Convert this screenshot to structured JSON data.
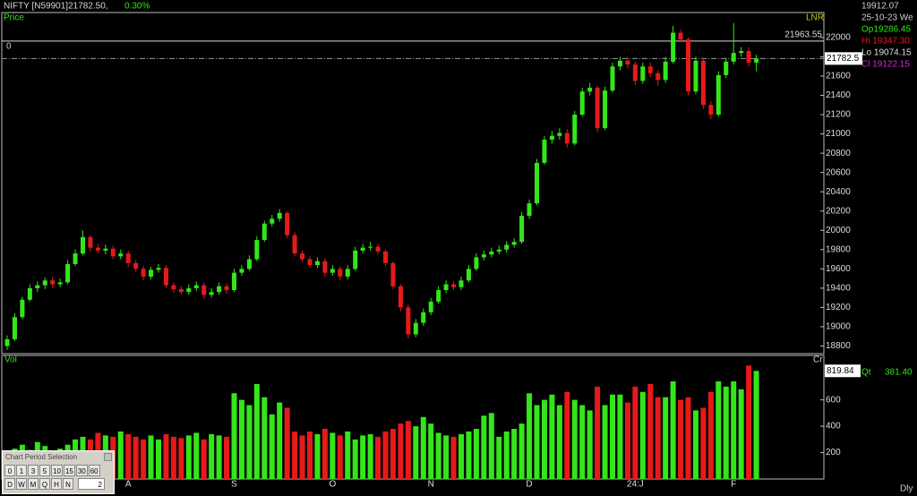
{
  "header": {
    "symbol": "NIFTY [N59901]21782.50,",
    "change": "0.30%",
    "panel_label": "Price",
    "scale_label": "LNR",
    "zero_label": "0"
  },
  "info": {
    "cursor_value": "19912.07",
    "date": "25-10-23 We",
    "open": "Op19286.45",
    "high": "Hi 19347.30",
    "low": "Lo 19074.15",
    "close": "Cl 19122.15"
  },
  "chart_data": [
    {
      "type": "candlestick",
      "up_color": "#33e61a",
      "down_color": "#e61a1a",
      "ylim": [
        18730,
        22250
      ],
      "yticks": [
        18800,
        19000,
        19200,
        19400,
        19600,
        19800,
        20000,
        20200,
        20400,
        20600,
        20800,
        21000,
        21200,
        21400,
        21600,
        21800,
        22000
      ],
      "ref_line": 21963.55,
      "categories": [
        null,
        null,
        null,
        null,
        null,
        null,
        null,
        null,
        null,
        null,
        null,
        null,
        null,
        null,
        null,
        null,
        "A",
        null,
        null,
        null,
        null,
        null,
        null,
        null,
        null,
        null,
        null,
        null,
        null,
        null,
        "S",
        null,
        null,
        null,
        null,
        null,
        null,
        null,
        null,
        null,
        null,
        null,
        null,
        "O",
        null,
        null,
        null,
        null,
        null,
        null,
        null,
        null,
        null,
        null,
        null,
        null,
        "N",
        null,
        null,
        null,
        null,
        null,
        null,
        null,
        null,
        null,
        null,
        null,
        null,
        "D",
        null,
        null,
        null,
        null,
        null,
        null,
        null,
        null,
        null,
        null,
        null,
        null,
        null,
        "24:J",
        null,
        null,
        null,
        null,
        null,
        null,
        null,
        null,
        null,
        null,
        null,
        null,
        "F",
        null,
        null,
        null
      ],
      "ohlc": [
        [
          18800,
          18910,
          18760,
          18870
        ],
        [
          18870,
          19140,
          18850,
          19100
        ],
        [
          19100,
          19310,
          19080,
          19280
        ],
        [
          19280,
          19440,
          19260,
          19400
        ],
        [
          19400,
          19470,
          19360,
          19430
        ],
        [
          19430,
          19510,
          19390,
          19480
        ],
        [
          19480,
          19520,
          19400,
          19440
        ],
        [
          19440,
          19500,
          19410,
          19460
        ],
        [
          19460,
          19690,
          19440,
          19650
        ],
        [
          19650,
          19800,
          19630,
          19760
        ],
        [
          19760,
          20000,
          19740,
          19930
        ],
        [
          19930,
          19950,
          19780,
          19820
        ],
        [
          19820,
          19860,
          19760,
          19790
        ],
        [
          19790,
          19850,
          19750,
          19810
        ],
        [
          19810,
          19840,
          19700,
          19730
        ],
        [
          19730,
          19800,
          19700,
          19760
        ],
        [
          19760,
          19790,
          19620,
          19660
        ],
        [
          19660,
          19690,
          19570,
          19600
        ],
        [
          19600,
          19630,
          19480,
          19520
        ],
        [
          19520,
          19620,
          19490,
          19590
        ],
        [
          19590,
          19650,
          19560,
          19610
        ],
        [
          19610,
          19640,
          19400,
          19430
        ],
        [
          19430,
          19460,
          19350,
          19390
        ],
        [
          19390,
          19420,
          19330,
          19360
        ],
        [
          19360,
          19440,
          19330,
          19400
        ],
        [
          19400,
          19470,
          19370,
          19430
        ],
        [
          19430,
          19460,
          19290,
          19330
        ],
        [
          19330,
          19400,
          19300,
          19360
        ],
        [
          19360,
          19460,
          19330,
          19420
        ],
        [
          19420,
          19450,
          19340,
          19380
        ],
        [
          19380,
          19600,
          19360,
          19560
        ],
        [
          19560,
          19640,
          19530,
          19600
        ],
        [
          19600,
          19740,
          19580,
          19700
        ],
        [
          19700,
          19940,
          19680,
          19900
        ],
        [
          19900,
          20100,
          19880,
          20070
        ],
        [
          20070,
          20160,
          20040,
          20120
        ],
        [
          20120,
          20220,
          20090,
          20180
        ],
        [
          20180,
          20200,
          19920,
          19950
        ],
        [
          19950,
          19980,
          19730,
          19760
        ],
        [
          19760,
          19790,
          19670,
          19700
        ],
        [
          19700,
          19730,
          19610,
          19640
        ],
        [
          19640,
          19720,
          19610,
          19680
        ],
        [
          19680,
          19710,
          19520,
          19560
        ],
        [
          19560,
          19640,
          19530,
          19600
        ],
        [
          19600,
          19630,
          19480,
          19520
        ],
        [
          19520,
          19640,
          19490,
          19600
        ],
        [
          19600,
          19830,
          19580,
          19790
        ],
        [
          19790,
          19860,
          19760,
          19820
        ],
        [
          19820,
          19880,
          19790,
          19830
        ],
        [
          19830,
          19860,
          19750,
          19780
        ],
        [
          19780,
          19800,
          19630,
          19660
        ],
        [
          19660,
          19680,
          19390,
          19420
        ],
        [
          19420,
          19440,
          19160,
          19200
        ],
        [
          19200,
          19230,
          18880,
          18920
        ],
        [
          18920,
          19080,
          18890,
          19040
        ],
        [
          19040,
          19190,
          19010,
          19150
        ],
        [
          19150,
          19300,
          19120,
          19260
        ],
        [
          19260,
          19420,
          19240,
          19380
        ],
        [
          19380,
          19480,
          19350,
          19440
        ],
        [
          19440,
          19470,
          19380,
          19410
        ],
        [
          19410,
          19520,
          19380,
          19480
        ],
        [
          19480,
          19640,
          19460,
          19600
        ],
        [
          19600,
          19760,
          19580,
          19720
        ],
        [
          19720,
          19790,
          19690,
          19750
        ],
        [
          19750,
          19820,
          19720,
          19780
        ],
        [
          19780,
          19840,
          19750,
          19800
        ],
        [
          19800,
          19890,
          19770,
          19850
        ],
        [
          19850,
          19920,
          19820,
          19880
        ],
        [
          19880,
          20190,
          19860,
          20150
        ],
        [
          20150,
          20320,
          20120,
          20280
        ],
        [
          20280,
          20740,
          20260,
          20700
        ],
        [
          20700,
          20980,
          20680,
          20940
        ],
        [
          20940,
          21030,
          20900,
          20980
        ],
        [
          20980,
          21060,
          20940,
          21010
        ],
        [
          21010,
          21050,
          20860,
          20900
        ],
        [
          20900,
          21240,
          20880,
          21200
        ],
        [
          21200,
          21480,
          21180,
          21440
        ],
        [
          21440,
          21530,
          21400,
          21480
        ],
        [
          21480,
          21500,
          21020,
          21060
        ],
        [
          21060,
          21490,
          21040,
          21450
        ],
        [
          21450,
          21740,
          21430,
          21700
        ],
        [
          21700,
          21800,
          21660,
          21760
        ],
        [
          21760,
          21800,
          21680,
          21720
        ],
        [
          21720,
          21750,
          21510,
          21550
        ],
        [
          21550,
          21740,
          21520,
          21700
        ],
        [
          21700,
          21740,
          21590,
          21630
        ],
        [
          21630,
          21660,
          21500,
          21560
        ],
        [
          21560,
          21800,
          21530,
          21750
        ],
        [
          21750,
          22120,
          21730,
          22050
        ],
        [
          22050,
          22080,
          21950,
          21980
        ],
        [
          21980,
          22000,
          21400,
          21440
        ],
        [
          21440,
          21800,
          21410,
          21760
        ],
        [
          21760,
          21790,
          21260,
          21300
        ],
        [
          21300,
          21340,
          21150,
          21200
        ],
        [
          21200,
          21650,
          21180,
          21610
        ],
        [
          21610,
          21790,
          21580,
          21750
        ],
        [
          21750,
          22150,
          21720,
          21840
        ],
        [
          21840,
          21900,
          21800,
          21860
        ],
        [
          21860,
          21900,
          21700,
          21740
        ],
        [
          21740,
          21820,
          21650,
          21782.5
        ]
      ]
    },
    {
      "type": "bar",
      "title": "Vol",
      "unit_label": "Cr",
      "qty_label": "Qt",
      "qty_value": "381.40",
      "ylim": [
        0,
        930
      ],
      "yticks": [
        200,
        400,
        600
      ],
      "values": [
        190,
        230,
        260,
        220,
        280,
        250,
        200,
        230,
        260,
        300,
        320,
        300,
        350,
        330,
        320,
        360,
        340,
        320,
        300,
        330,
        300,
        340,
        320,
        310,
        330,
        350,
        300,
        340,
        330,
        320,
        650,
        600,
        560,
        720,
        620,
        490,
        580,
        540,
        360,
        330,
        360,
        340,
        380,
        350,
        330,
        360,
        300,
        330,
        340,
        320,
        360,
        380,
        420,
        440,
        400,
        470,
        420,
        350,
        330,
        320,
        340,
        360,
        380,
        480,
        500,
        320,
        360,
        380,
        420,
        650,
        560,
        600,
        640,
        560,
        660,
        600,
        560,
        520,
        700,
        560,
        640,
        640,
        580,
        700,
        660,
        720,
        620,
        620,
        740,
        600,
        620,
        520,
        540,
        660,
        740,
        700,
        740,
        680,
        860,
        819.84
      ]
    }
  ],
  "period_selector": {
    "title": "Chart Period Selection",
    "periods": [
      "0",
      "1",
      "3",
      "5",
      "10",
      "15",
      "30",
      "60"
    ],
    "units": [
      "D",
      "W",
      "M",
      "Q",
      "H",
      "N"
    ],
    "input": "2"
  },
  "footer": {
    "frequency": "Dly"
  }
}
